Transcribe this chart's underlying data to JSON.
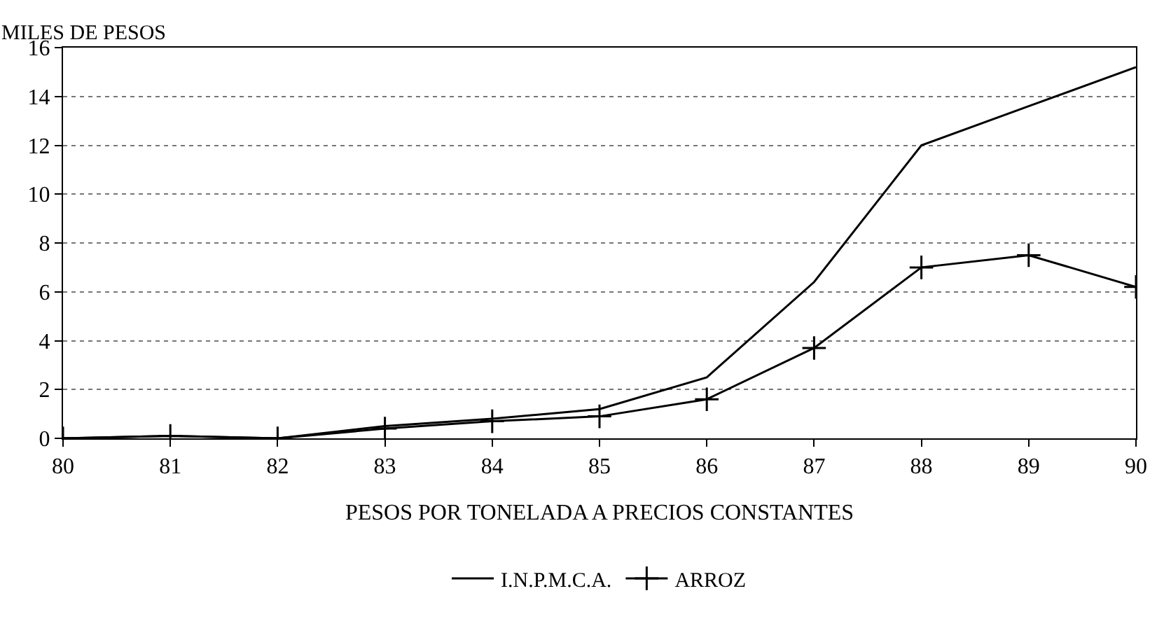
{
  "chart_data": {
    "type": "line",
    "ylabel": "MILES DE PESOS",
    "xlabel": "PESOS POR TONELADA A PRECIOS CONSTANTES",
    "x": [
      80,
      81,
      82,
      83,
      84,
      85,
      86,
      87,
      88,
      89,
      90
    ],
    "series": [
      {
        "name": "I.N.P.M.C.A.",
        "color": "#000000",
        "marker": "none",
        "values": [
          0,
          0.1,
          0,
          0.5,
          0.8,
          1.2,
          2.5,
          6.4,
          12,
          13.6,
          15.2
        ]
      },
      {
        "name": "ARROZ",
        "color": "#000000",
        "marker": "cross",
        "values": [
          0,
          0.1,
          0,
          0.4,
          0.7,
          0.9,
          1.6,
          3.7,
          7,
          7.5,
          6.2
        ]
      }
    ],
    "xlim": [
      80,
      90
    ],
    "xticks": [
      80,
      81,
      82,
      83,
      84,
      85,
      86,
      87,
      88,
      89,
      90
    ],
    "ylim": [
      0,
      16
    ],
    "yticks": [
      0,
      2,
      4,
      6,
      8,
      10,
      12,
      14,
      16
    ],
    "grid": "y",
    "legend": "bottom",
    "line_style": "solid"
  }
}
